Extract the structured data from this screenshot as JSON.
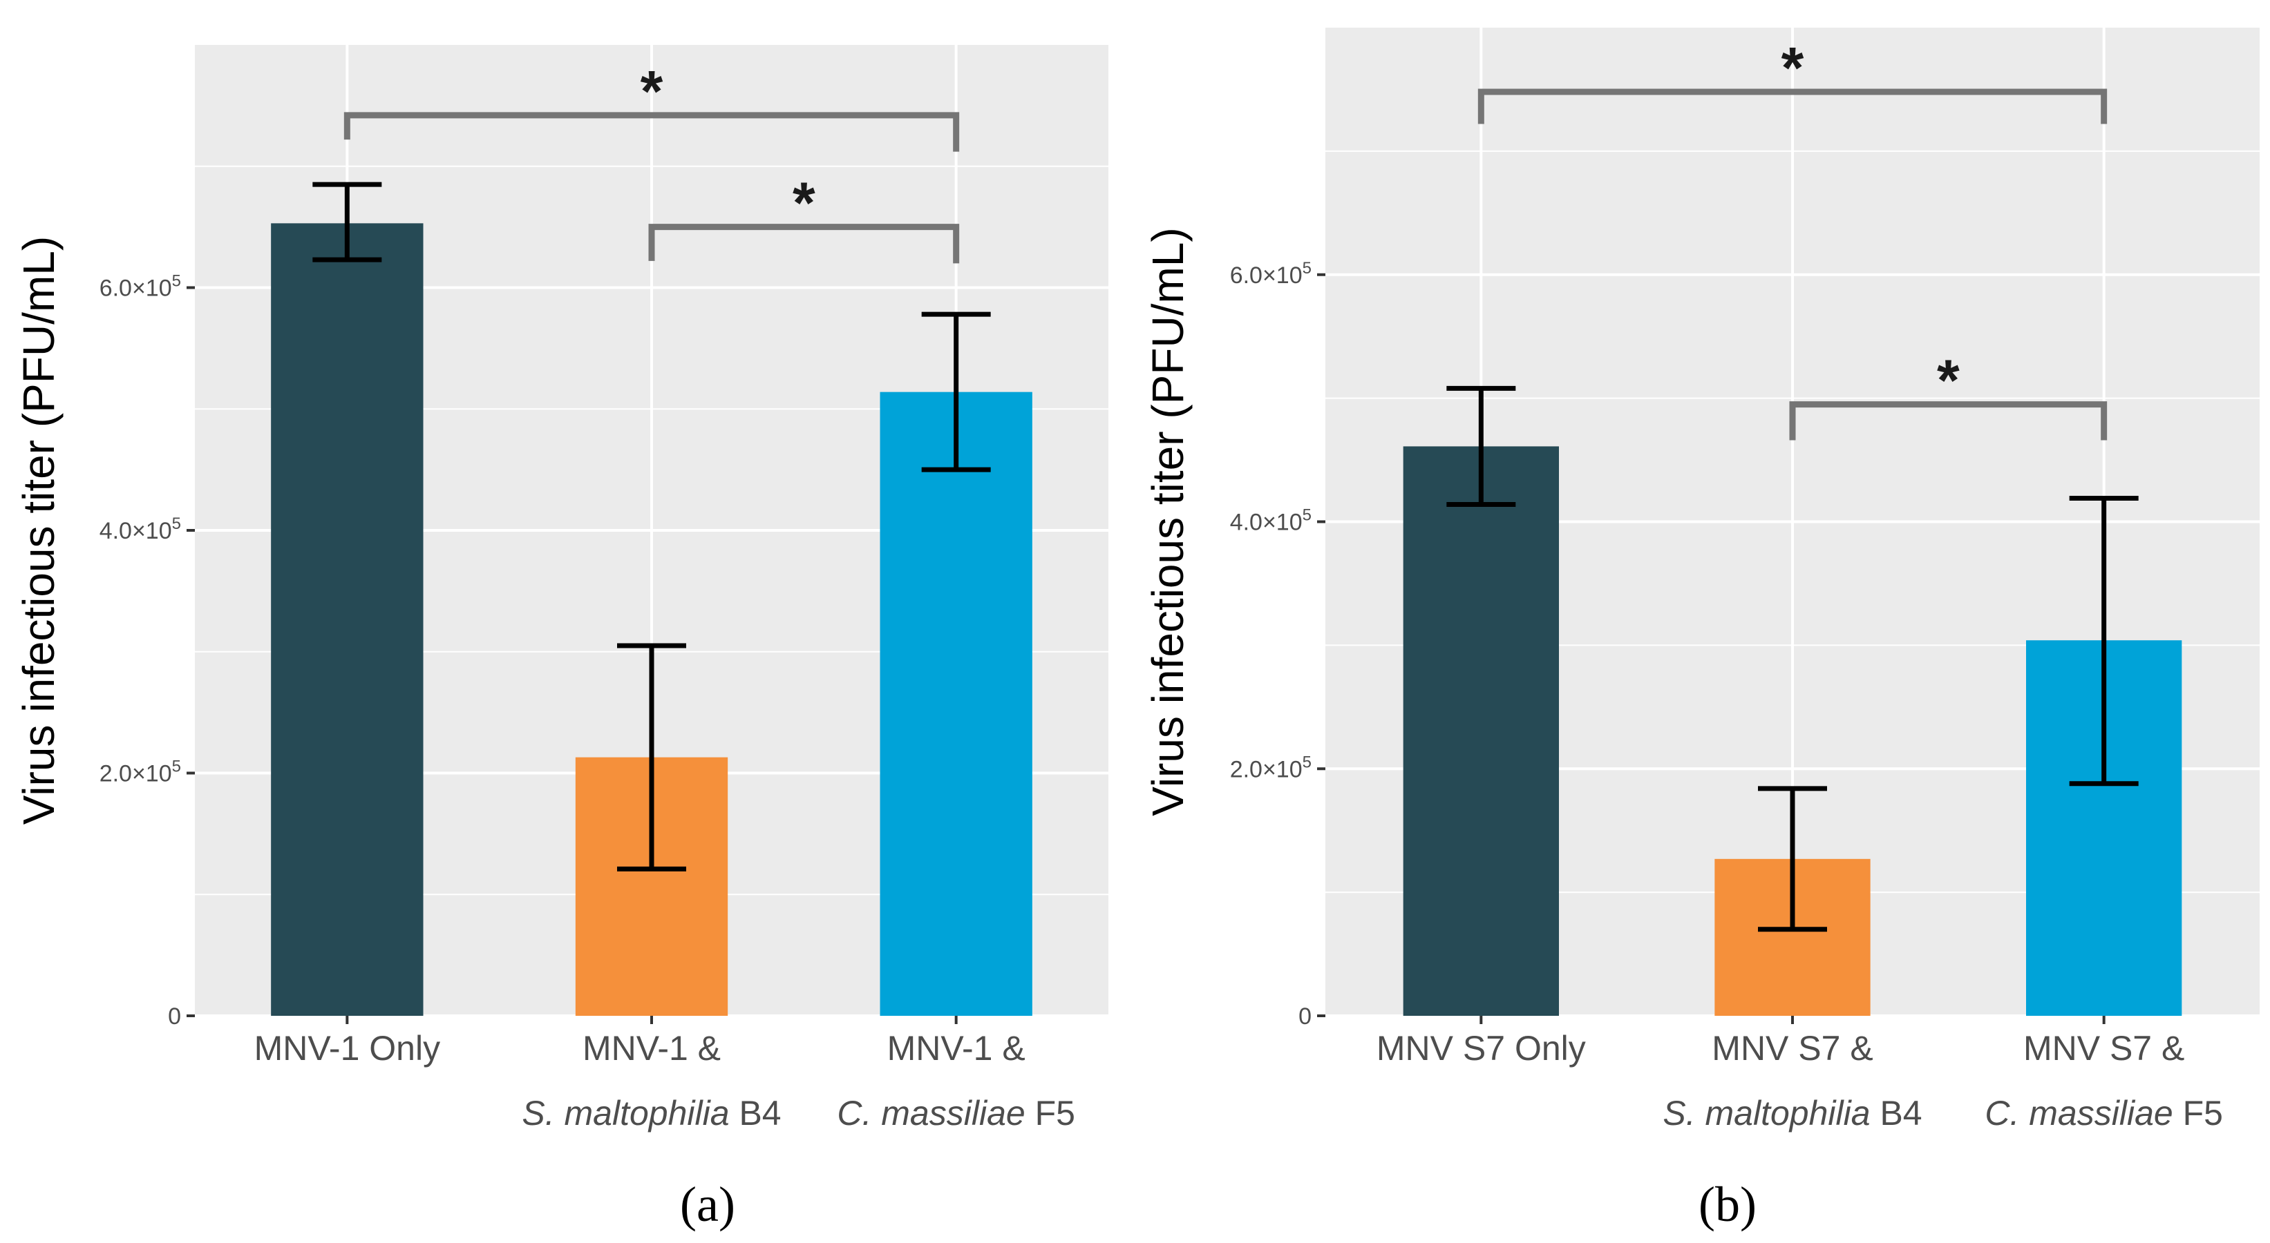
{
  "chart_data": [
    {
      "type": "bar",
      "panel_label": "(a)",
      "ylabel": "Virus infectious titer (PFU/mL)",
      "ylim": [
        0,
        800000
      ],
      "yticks": [
        {
          "value": 0,
          "label": "0"
        },
        {
          "value": 200000,
          "label": "2.0×10",
          "exp": "5"
        },
        {
          "value": 400000,
          "label": "4.0×10",
          "exp": "5"
        },
        {
          "value": 600000,
          "label": "6.0×10",
          "exp": "5"
        }
      ],
      "categories": [
        {
          "line1": "MNV-1 Only",
          "line2_italic": "",
          "line2_plain": ""
        },
        {
          "line1": "MNV-1 &",
          "line2_italic": "S. maltophilia",
          "line2_plain": " B4"
        },
        {
          "line1": "MNV-1 &",
          "line2_italic": "C. massiliae",
          "line2_plain": " F5"
        }
      ],
      "values": [
        653000,
        213000,
        514000
      ],
      "err_low": [
        623000,
        121000,
        450000
      ],
      "err_high": [
        685000,
        305000,
        578000
      ],
      "colors": [
        "#264a55",
        "#f5903b",
        "#00a3d8"
      ],
      "significance": [
        {
          "from": 0,
          "to": 2,
          "y": 742000,
          "left_drop": 722000,
          "right_drop": 712000,
          "label": "*"
        },
        {
          "from": 1,
          "to": 2,
          "y": 650000,
          "left_drop": 622000,
          "right_drop": 620000,
          "label": "*"
        }
      ]
    },
    {
      "type": "bar",
      "panel_label": "(b)",
      "ylabel": "Virus infectious titer (PFU/mL)",
      "ylim": [
        0,
        800000
      ],
      "yticks": [
        {
          "value": 0,
          "label": "0"
        },
        {
          "value": 200000,
          "label": "2.0×10",
          "exp": "5"
        },
        {
          "value": 400000,
          "label": "4.0×10",
          "exp": "5"
        },
        {
          "value": 600000,
          "label": "6.0×10",
          "exp": "5"
        }
      ],
      "categories": [
        {
          "line1": "MNV S7 Only",
          "line2_italic": "",
          "line2_plain": ""
        },
        {
          "line1": "MNV S7 &",
          "line2_italic": "S. maltophilia",
          "line2_plain": " B4"
        },
        {
          "line1": "MNV S7 &",
          "line2_italic": "C. massiliae",
          "line2_plain": " F5"
        }
      ],
      "values": [
        461000,
        127000,
        304000
      ],
      "err_low": [
        414000,
        70000,
        188000
      ],
      "err_high": [
        508000,
        184000,
        419000
      ],
      "colors": [
        "#264a55",
        "#f5903b",
        "#00a3d8"
      ],
      "significance": [
        {
          "from": 0,
          "to": 2,
          "y": 748000,
          "left_drop": 722000,
          "right_drop": 722000,
          "label": "*"
        },
        {
          "from": 1,
          "to": 2,
          "y": 495000,
          "left_drop": 466000,
          "right_drop": 466000,
          "label": "*"
        }
      ]
    }
  ]
}
